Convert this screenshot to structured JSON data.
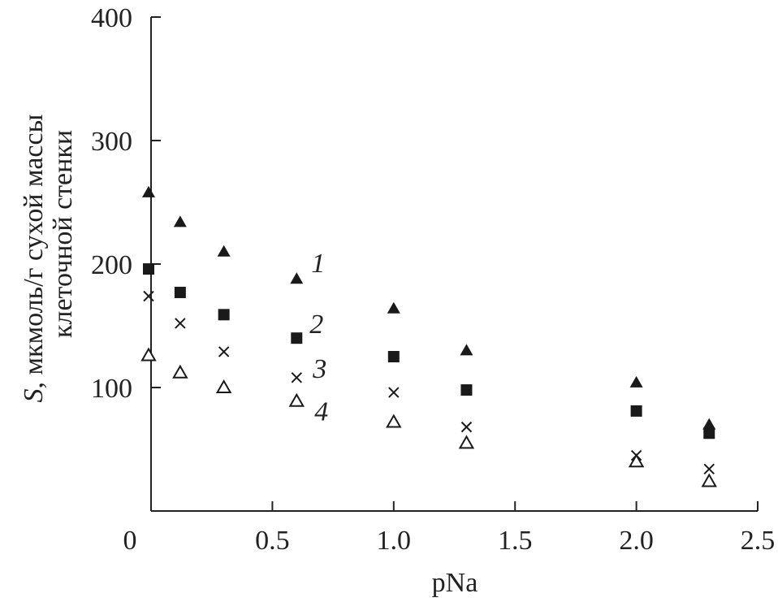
{
  "chart_data": {
    "type": "scatter",
    "title": "",
    "xlabel": "pNa",
    "ylabel_var": "S",
    "ylabel_rest": ", мкмоль/г сухой массы",
    "ylabel_line2": "клеточной стенки",
    "xlim": [
      0,
      2.5
    ],
    "ylim": [
      0,
      400
    ],
    "y_display_min": 0,
    "x_ticks": [
      0,
      0.5,
      1.0,
      1.5,
      2.0,
      2.5
    ],
    "x_tick_labels": [
      "0",
      "0.5",
      "1.0",
      "1.5",
      "2.0",
      "2.5"
    ],
    "y_ticks": [
      100,
      200,
      300,
      400
    ],
    "y_tick_labels": [
      "100",
      "200",
      "300",
      "400"
    ],
    "grid": false,
    "legend": "inline labels",
    "series": [
      {
        "name": "1",
        "marker": "filled-triangle",
        "x": [
          0,
          0.12,
          0.3,
          0.6,
          1.0,
          1.3,
          2.0,
          2.3
        ],
        "y": [
          258,
          234,
          210,
          188,
          164,
          130,
          104,
          70
        ]
      },
      {
        "name": "2",
        "marker": "filled-square",
        "x": [
          0,
          0.12,
          0.3,
          0.6,
          1.0,
          1.3,
          2.0,
          2.3
        ],
        "y": [
          196,
          177,
          159,
          140,
          125,
          98,
          81,
          63
        ]
      },
      {
        "name": "3",
        "marker": "cross",
        "x": [
          0,
          0.12,
          0.3,
          0.6,
          1.0,
          1.3,
          2.0,
          2.3
        ],
        "y": [
          174,
          152,
          129,
          108,
          96,
          68,
          45,
          34
        ]
      },
      {
        "name": "4",
        "marker": "open-triangle",
        "x": [
          0,
          0.12,
          0.3,
          0.6,
          1.0,
          1.3,
          2.0,
          2.3
        ],
        "y": [
          126,
          112,
          100,
          89,
          72,
          55,
          40,
          24
        ]
      }
    ]
  }
}
